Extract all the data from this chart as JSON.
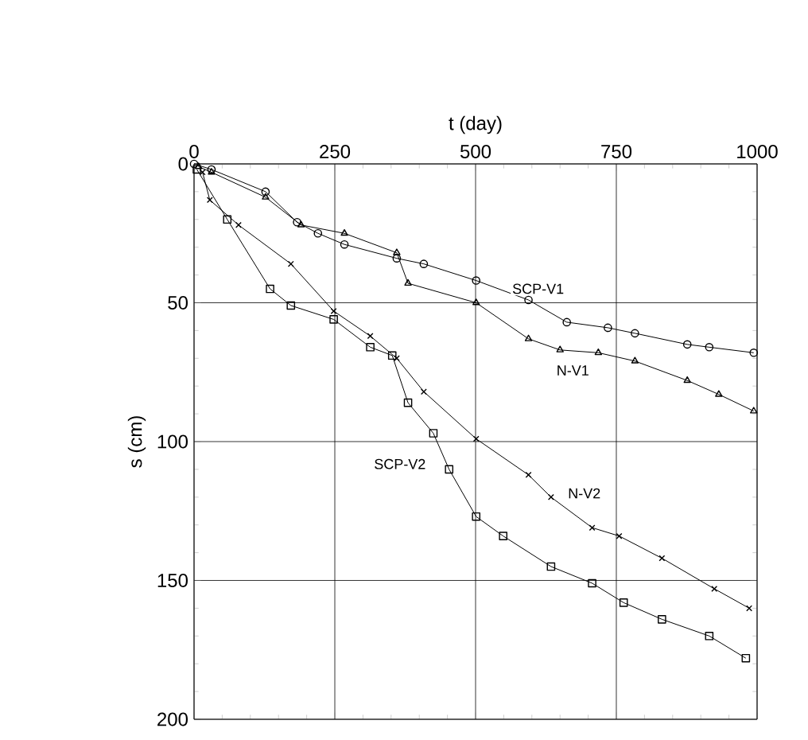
{
  "chart_data": {
    "type": "line",
    "xlabel": "t (day)",
    "ylabel": "s (cm)",
    "xlim": [
      0,
      1000
    ],
    "ylim": [
      200,
      0
    ],
    "xticks": [
      0,
      250,
      500,
      750,
      1000
    ],
    "yticks": [
      0,
      50,
      100,
      150,
      200
    ],
    "grid": true,
    "series": [
      {
        "name": "SCP-V1",
        "color": "#000000",
        "marker": "circle",
        "x": [
          0,
          31,
          127,
          183,
          220,
          267,
          360,
          408,
          501,
          594,
          662,
          735,
          783,
          876,
          915,
          994
        ],
        "values": [
          0,
          2,
          10,
          21,
          25,
          29,
          34,
          36,
          42,
          49,
          57,
          59,
          61,
          65,
          66,
          68
        ]
      },
      {
        "name": "N-V1",
        "color": "#000000",
        "marker": "triangle",
        "x": [
          8,
          31,
          127,
          190,
          267,
          360,
          380,
          501,
          594,
          650,
          718,
          783,
          876,
          932,
          994
        ],
        "values": [
          1,
          3,
          12,
          22,
          25,
          32,
          43,
          50,
          63,
          67,
          68,
          71,
          78,
          83,
          89
        ]
      },
      {
        "name": "N-V2",
        "color": "#000000",
        "marker": "cross",
        "x": [
          15,
          28,
          79,
          172,
          248,
          313,
          360,
          408,
          501,
          594,
          634,
          707,
          755,
          831,
          924,
          986
        ],
        "values": [
          3,
          13,
          22,
          36,
          53,
          62,
          70,
          82,
          99,
          112,
          120,
          131,
          134,
          142,
          153,
          160
        ]
      },
      {
        "name": "SCP-V2",
        "color": "#000000",
        "marker": "square",
        "x": [
          5,
          59,
          135,
          172,
          248,
          313,
          352,
          380,
          425,
          453,
          501,
          549,
          634,
          707,
          763,
          831,
          915,
          980
        ],
        "values": [
          2,
          20,
          45,
          51,
          56,
          66,
          69,
          86,
          97,
          110,
          127,
          134,
          145,
          151,
          158,
          164,
          170,
          178
        ]
      }
    ]
  }
}
